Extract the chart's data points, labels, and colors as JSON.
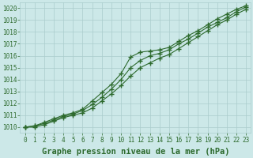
{
  "x": [
    0,
    1,
    2,
    3,
    4,
    5,
    6,
    7,
    8,
    9,
    10,
    11,
    12,
    13,
    14,
    15,
    16,
    17,
    18,
    19,
    20,
    21,
    22,
    23
  ],
  "line1": [
    1010.0,
    1010.1,
    1010.4,
    1010.7,
    1011.0,
    1011.2,
    1011.5,
    1012.2,
    1012.9,
    1013.6,
    1014.5,
    1015.9,
    1016.3,
    1016.4,
    1016.5,
    1016.7,
    1017.2,
    1017.7,
    1018.1,
    1018.6,
    1019.1,
    1019.5,
    1019.9,
    1020.2
  ],
  "line2": [
    1010.0,
    1010.1,
    1010.3,
    1010.6,
    1010.9,
    1011.1,
    1011.4,
    1011.9,
    1012.5,
    1013.2,
    1014.0,
    1015.0,
    1015.6,
    1016.0,
    1016.2,
    1016.5,
    1017.0,
    1017.4,
    1017.9,
    1018.4,
    1018.8,
    1019.2,
    1019.7,
    1020.1
  ],
  "line3": [
    1010.0,
    1010.0,
    1010.2,
    1010.5,
    1010.8,
    1011.0,
    1011.2,
    1011.6,
    1012.2,
    1012.8,
    1013.5,
    1014.3,
    1015.0,
    1015.4,
    1015.8,
    1016.1,
    1016.6,
    1017.1,
    1017.6,
    1018.1,
    1018.6,
    1019.0,
    1019.5,
    1019.9
  ],
  "bg_color": "#cce8e8",
  "grid_color": "#aacccc",
  "line_color": "#2d6a2d",
  "xlabel": "Graphe pression niveau de la mer (hPa)",
  "ylim": [
    1009.5,
    1020.5
  ],
  "xlim": [
    -0.5,
    23.5
  ],
  "yticks": [
    1010,
    1011,
    1012,
    1013,
    1014,
    1015,
    1016,
    1017,
    1018,
    1019,
    1020
  ],
  "xticks": [
    0,
    1,
    2,
    3,
    4,
    5,
    6,
    7,
    8,
    9,
    10,
    11,
    12,
    13,
    14,
    15,
    16,
    17,
    18,
    19,
    20,
    21,
    22,
    23
  ],
  "tick_fontsize": 5.5,
  "label_fontsize": 7.5,
  "marker": "+",
  "markersize": 4,
  "markeredgewidth": 1.0,
  "linewidth": 0.8
}
